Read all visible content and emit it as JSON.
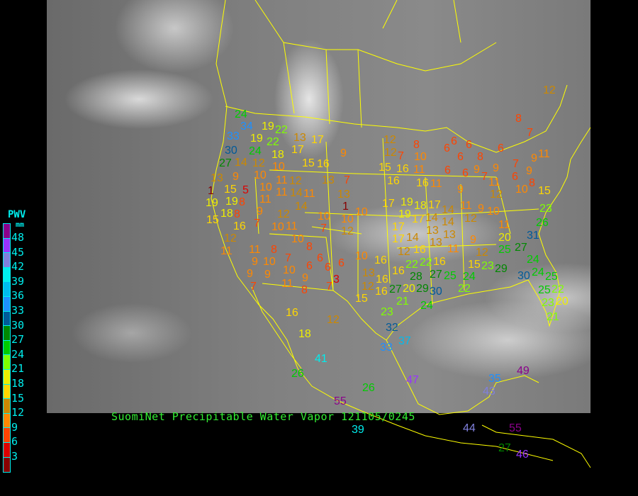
{
  "caption": "SuomiNet Precipitable Water Vapor 121105/0245",
  "legend": {
    "title": "PWV",
    "unit": "mm",
    "labels": [
      "48",
      "45",
      "42",
      "39",
      "36",
      "33",
      "30",
      "27",
      "24",
      "21",
      "18",
      "15",
      "12",
      "9",
      "6",
      "3"
    ],
    "colors": [
      "#8b008b",
      "#9933ff",
      "#8080dd",
      "#00eeee",
      "#00bbee",
      "#1e90ff",
      "#005a99",
      "#008800",
      "#00cc00",
      "#80ff00",
      "#eeee00",
      "#ffd700",
      "#cc8800",
      "#ff8800",
      "#ff4400",
      "#dd0000",
      "#880000"
    ]
  },
  "map": {
    "boundary_color": "#ffff00",
    "background": "satellite infrared imagery"
  },
  "stations": [
    24,
    34,
    33,
    19,
    22,
    13,
    17,
    19,
    22,
    18,
    17,
    30,
    24,
    9,
    27,
    14,
    12,
    10,
    15,
    16,
    10,
    10,
    11,
    12,
    13,
    7,
    13,
    9,
    1,
    15,
    5,
    11,
    11,
    14,
    11,
    19,
    19,
    8,
    14,
    13,
    1,
    9,
    18,
    10,
    10,
    15,
    8,
    12,
    16,
    7,
    10,
    11,
    10,
    7,
    12,
    12,
    10,
    8,
    11,
    11,
    8,
    7,
    6,
    6,
    6,
    9,
    10,
    10,
    6,
    9,
    9,
    9,
    3,
    7,
    11,
    8,
    7,
    12,
    12,
    7,
    8,
    10,
    6,
    6,
    6,
    6,
    8,
    6,
    7,
    11,
    9,
    15,
    16,
    16,
    11,
    6,
    6,
    9,
    7,
    9,
    7,
    6,
    9,
    8,
    16,
    11,
    9,
    11,
    12,
    10,
    15,
    17,
    19,
    18,
    17,
    14,
    11,
    9,
    10,
    23,
    19,
    17,
    14,
    14,
    12,
    17,
    13,
    13,
    11,
    26,
    17,
    14,
    16,
    13,
    9,
    20,
    31,
    11,
    12,
    25,
    27,
    10,
    16,
    12,
    16,
    22,
    22,
    23,
    13,
    16,
    27,
    25,
    24,
    15,
    29,
    24,
    30,
    24,
    25,
    12,
    16,
    20,
    28,
    29,
    16,
    15,
    21,
    30,
    27,
    24,
    22,
    25,
    23,
    22,
    20,
    21,
    16,
    12,
    23,
    32,
    37,
    33,
    18,
    41,
    26,
    26,
    47,
    55,
    39,
    35,
    49,
    43,
    44,
    55,
    27,
    46,
    12,
    8
  ]
}
